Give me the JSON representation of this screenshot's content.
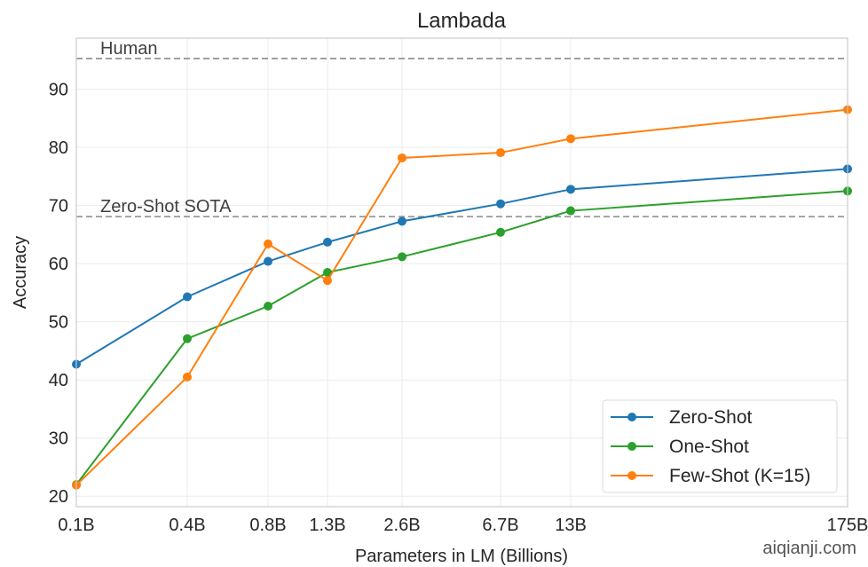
{
  "chart_data": {
    "type": "line",
    "title": "Lambada",
    "xlabel": "Parameters in LM (Billions)",
    "ylabel": "Accuracy",
    "categories": [
      "0.1B",
      "0.4B",
      "0.8B",
      "1.3B",
      "2.6B",
      "6.7B",
      "13B",
      "175B"
    ],
    "ylim": [
      18.2,
      98.8
    ],
    "yticks": [
      20,
      30,
      40,
      50,
      60,
      70,
      80,
      90
    ],
    "grid": true,
    "legend_position": "bottom-right",
    "series": [
      {
        "name": "Zero-Shot",
        "color": "#1f77b4",
        "values": [
          42.7,
          54.3,
          60.4,
          63.7,
          67.3,
          70.3,
          72.8,
          76.3
        ]
      },
      {
        "name": "One-Shot",
        "color": "#2ca02c",
        "values": [
          22.0,
          47.1,
          52.7,
          58.5,
          61.2,
          65.4,
          69.1,
          72.5
        ]
      },
      {
        "name": "Few-Shot (K=15)",
        "color": "#ff7f0e",
        "values": [
          21.9,
          40.5,
          63.4,
          57.1,
          78.2,
          79.1,
          81.5,
          86.5
        ]
      }
    ],
    "reference_lines": [
      {
        "label": "Human",
        "value": 95.3
      },
      {
        "label": "Zero-Shot SOTA",
        "value": 68.1
      }
    ]
  },
  "watermark": "aiqianji.com"
}
